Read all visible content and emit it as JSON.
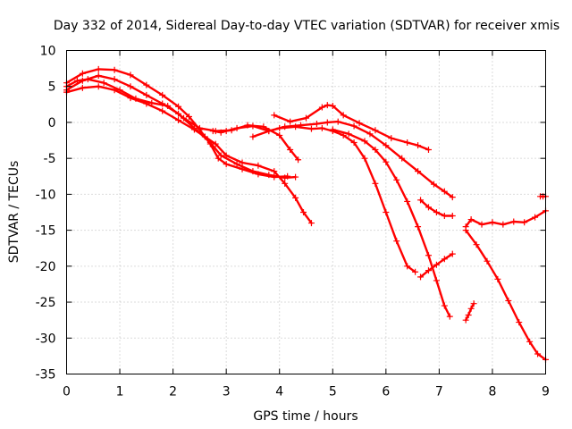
{
  "chart_data": {
    "type": "scatter",
    "title": "Day 332 of 2014, Sidereal Day-to-day VTEC variation (SDTVAR) for receiver xmis",
    "xlabel": "GPS time / hours",
    "ylabel": "SDTVAR / TECUs",
    "xlim": [
      0,
      9
    ],
    "ylim": [
      -35,
      10
    ],
    "xticks": [
      0,
      1,
      2,
      3,
      4,
      5,
      6,
      7,
      8,
      9
    ],
    "xtick_labels": [
      "0",
      "1",
      "2",
      "3",
      "4",
      "5",
      "6",
      "7",
      "8",
      "9"
    ],
    "yticks": [
      10,
      5,
      0,
      -5,
      -10,
      -15,
      -20,
      -25,
      -30,
      -35
    ],
    "ytick_labels": [
      "10",
      "5",
      "0",
      "-5",
      "-10",
      "-15",
      "-20",
      "-25",
      "-30",
      "-35"
    ],
    "grid": true,
    "marker": "+",
    "color": "#ff0000",
    "series": [
      {
        "name": "sat-1",
        "x": [
          0,
          0.3,
          0.6,
          0.9,
          1.2,
          1.5,
          1.8,
          2.1,
          2.3,
          2.5,
          2.7,
          2.85,
          3.0,
          3.3,
          3.6,
          3.9,
          4.15
        ],
        "y": [
          5.5,
          6.8,
          7.4,
          7.3,
          6.6,
          5.2,
          3.8,
          2.2,
          0.8,
          -1.0,
          -3.0,
          -5.0,
          -5.8,
          -6.5,
          -7.2,
          -7.6,
          -7.5
        ]
      },
      {
        "name": "sat-2",
        "x": [
          0,
          0.3,
          0.6,
          0.9,
          1.2,
          1.5,
          1.8,
          2.1,
          2.4,
          2.7,
          2.9,
          3.2,
          3.5,
          3.8,
          4.1,
          4.3
        ],
        "y": [
          4.5,
          5.8,
          6.5,
          6.0,
          5.0,
          3.8,
          2.6,
          1.2,
          -0.8,
          -2.8,
          -4.6,
          -5.8,
          -6.8,
          -7.3,
          -7.7,
          -7.6
        ]
      },
      {
        "name": "sat-3",
        "x": [
          0,
          0.2,
          0.4,
          0.7,
          1.0,
          1.3,
          1.6,
          1.9,
          2.2,
          2.5,
          2.8,
          3.1,
          3.4,
          3.7,
          4.0,
          4.2,
          4.35
        ],
        "y": [
          5.0,
          5.8,
          6.0,
          5.5,
          4.5,
          3.3,
          2.7,
          2.3,
          0.6,
          -0.8,
          -1.2,
          -1.1,
          -0.4,
          -0.6,
          -1.8,
          -3.8,
          -5.2
        ]
      },
      {
        "name": "sat-4",
        "x": [
          0,
          0.3,
          0.6,
          0.9,
          1.2,
          1.5,
          1.8,
          2.1,
          2.4,
          2.6,
          2.8,
          3.0,
          3.3,
          3.6,
          3.9,
          4.1,
          4.3,
          4.45,
          4.6
        ],
        "y": [
          4.2,
          4.8,
          5.0,
          4.5,
          3.4,
          2.6,
          1.6,
          0.3,
          -1.0,
          -2.0,
          -3.0,
          -4.6,
          -5.6,
          -6.0,
          -6.8,
          -8.5,
          -10.5,
          -12.5,
          -14.0
        ]
      },
      {
        "name": "sat-5",
        "x": [
          2.75,
          2.9,
          3.0,
          3.2,
          3.5,
          3.8,
          4.0,
          4.3,
          4.6,
          4.8,
          5.0,
          5.2,
          5.4,
          5.6,
          5.8,
          6.0,
          6.2,
          6.4,
          6.55
        ],
        "y": [
          -1.2,
          -1.4,
          -1.2,
          -0.8,
          -0.5,
          -1.2,
          -0.8,
          -0.6,
          -0.9,
          -0.8,
          -1.2,
          -1.8,
          -2.8,
          -5.0,
          -8.5,
          -12.5,
          -16.5,
          -20.0,
          -20.8
        ]
      },
      {
        "name": "sat-6",
        "x": [
          3.9,
          4.2,
          4.5,
          4.8,
          4.9,
          5.0,
          5.2,
          5.5,
          5.8,
          6.1,
          6.4,
          6.6,
          6.8
        ],
        "y": [
          1.0,
          0.1,
          0.6,
          2.1,
          2.4,
          2.3,
          1.0,
          -0.1,
          -1.1,
          -2.2,
          -2.8,
          -3.2,
          -3.8
        ]
      },
      {
        "name": "sat-7",
        "x": [
          3.5,
          3.8,
          4.1,
          4.4,
          4.7,
          4.9,
          5.1,
          5.4,
          5.7,
          6.0,
          6.3,
          6.6,
          6.9,
          7.1,
          7.25
        ],
        "y": [
          -2.0,
          -1.2,
          -0.6,
          -0.4,
          -0.2,
          0.0,
          0.1,
          -0.5,
          -1.6,
          -3.2,
          -5.0,
          -6.8,
          -8.6,
          -9.6,
          -10.4
        ]
      },
      {
        "name": "sat-8",
        "x": [
          5.0,
          5.3,
          5.6,
          5.8,
          6.0,
          6.2,
          6.4,
          6.6,
          6.8,
          6.95,
          7.1,
          7.2
        ],
        "y": [
          -1.0,
          -1.6,
          -2.6,
          -3.8,
          -5.5,
          -8.0,
          -11.0,
          -14.5,
          -18.5,
          -22.0,
          -25.5,
          -27.0
        ]
      },
      {
        "name": "sat-9",
        "x": [
          6.65,
          6.8,
          6.95,
          7.1,
          7.25
        ],
        "y": [
          -10.8,
          -11.8,
          -12.5,
          -13.0,
          -13.0
        ]
      },
      {
        "name": "sat-10",
        "x": [
          6.65,
          6.8,
          6.95,
          7.1,
          7.25
        ],
        "y": [
          -21.5,
          -20.6,
          -19.8,
          -19.0,
          -18.3
        ]
      },
      {
        "name": "sat-11",
        "x": [
          7.5,
          7.55,
          7.6,
          7.65
        ],
        "y": [
          -27.5,
          -26.8,
          -25.9,
          -25.2
        ]
      },
      {
        "name": "sat-12",
        "x": [
          7.5,
          7.6,
          7.8,
          8.0,
          8.2,
          8.4,
          8.6,
          8.8,
          9.0
        ],
        "y": [
          -14.5,
          -13.5,
          -14.2,
          -13.9,
          -14.2,
          -13.8,
          -13.9,
          -13.2,
          -12.3
        ]
      },
      {
        "name": "sat-13",
        "x": [
          7.5,
          7.7,
          7.9,
          8.1,
          8.3,
          8.5,
          8.7,
          8.85,
          9.0
        ],
        "y": [
          -15.0,
          -17.0,
          -19.3,
          -21.8,
          -24.8,
          -27.8,
          -30.5,
          -32.2,
          -33.0
        ]
      },
      {
        "name": "sat-14",
        "x": [
          8.9,
          8.95,
          9.0
        ],
        "y": [
          -10.3,
          -10.3,
          -10.3
        ]
      }
    ]
  }
}
